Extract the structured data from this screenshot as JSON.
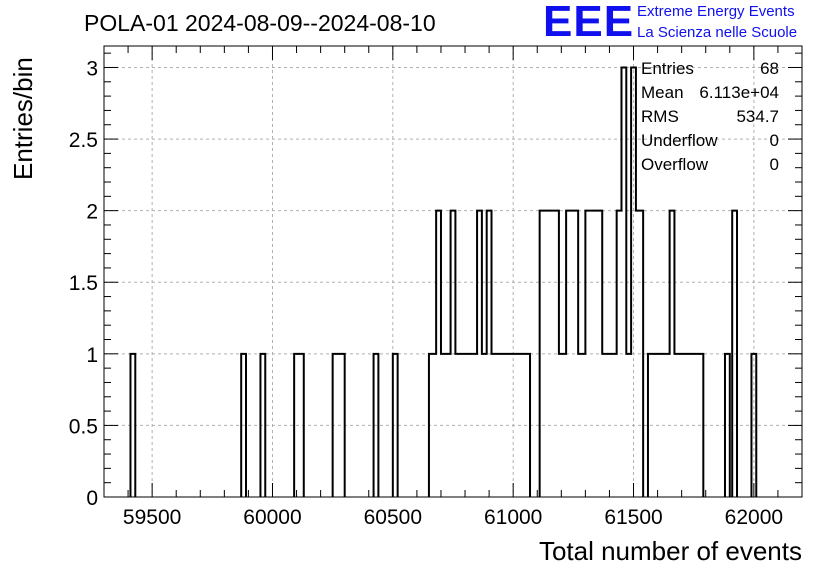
{
  "chart_data": {
    "type": "histogram",
    "title": "POLA-01 2024-08-09--2024-08-10",
    "xlabel": "Total number of events",
    "ylabel": "Entries/bin",
    "xlim": [
      59300,
      62200
    ],
    "ylim": [
      0,
      3.15
    ],
    "grid": true,
    "xticks": [
      59500,
      60000,
      60500,
      61000,
      61500,
      62000
    ],
    "yticks": [
      0,
      0.5,
      1,
      1.5,
      2,
      2.5,
      3
    ],
    "bin_width": 20,
    "bins": [
      {
        "x0": 59410,
        "x1": 59430,
        "value": 1
      },
      {
        "x0": 59870,
        "x1": 59890,
        "value": 1
      },
      {
        "x0": 59950,
        "x1": 59970,
        "value": 1
      },
      {
        "x0": 60090,
        "x1": 60130,
        "value": 1
      },
      {
        "x0": 60250,
        "x1": 60300,
        "value": 1
      },
      {
        "x0": 60420,
        "x1": 60440,
        "value": 1
      },
      {
        "x0": 60500,
        "x1": 60520,
        "value": 1
      },
      {
        "x0": 60650,
        "x1": 60680,
        "value": 1
      },
      {
        "x0": 60680,
        "x1": 60700,
        "value": 2
      },
      {
        "x0": 60700,
        "x1": 60740,
        "value": 1
      },
      {
        "x0": 60740,
        "x1": 60760,
        "value": 2
      },
      {
        "x0": 60760,
        "x1": 60850,
        "value": 1
      },
      {
        "x0": 60850,
        "x1": 60870,
        "value": 2
      },
      {
        "x0": 60870,
        "x1": 60890,
        "value": 1
      },
      {
        "x0": 60890,
        "x1": 60910,
        "value": 2
      },
      {
        "x0": 60910,
        "x1": 61070,
        "value": 1
      },
      {
        "x0": 61110,
        "x1": 61190,
        "value": 2
      },
      {
        "x0": 61190,
        "x1": 61220,
        "value": 1
      },
      {
        "x0": 61220,
        "x1": 61270,
        "value": 2
      },
      {
        "x0": 61270,
        "x1": 61300,
        "value": 1
      },
      {
        "x0": 61300,
        "x1": 61370,
        "value": 2
      },
      {
        "x0": 61370,
        "x1": 61430,
        "value": 1
      },
      {
        "x0": 61430,
        "x1": 61450,
        "value": 2
      },
      {
        "x0": 61450,
        "x1": 61470,
        "value": 3
      },
      {
        "x0": 61470,
        "x1": 61490,
        "value": 1
      },
      {
        "x0": 61490,
        "x1": 61510,
        "value": 3
      },
      {
        "x0": 61510,
        "x1": 61540,
        "value": 2
      },
      {
        "x0": 61560,
        "x1": 61650,
        "value": 1
      },
      {
        "x0": 61650,
        "x1": 61670,
        "value": 2
      },
      {
        "x0": 61670,
        "x1": 61790,
        "value": 1
      },
      {
        "x0": 61880,
        "x1": 61900,
        "value": 1
      },
      {
        "x0": 61910,
        "x1": 61930,
        "value": 2
      },
      {
        "x0": 61990,
        "x1": 62010,
        "value": 1
      }
    ],
    "stats": [
      {
        "key": "Entries",
        "value": "68"
      },
      {
        "key": "Mean",
        "value": "6.113e+04"
      },
      {
        "key": "RMS",
        "value": "534.7"
      },
      {
        "key": "Underflow",
        "value": "0"
      },
      {
        "key": "Overflow",
        "value": "0"
      }
    ]
  },
  "logo": {
    "mark": "EEE",
    "line1": "Extreme Energy Events",
    "line2": "La Scienza nelle Scuole",
    "color": "#1010ee"
  }
}
